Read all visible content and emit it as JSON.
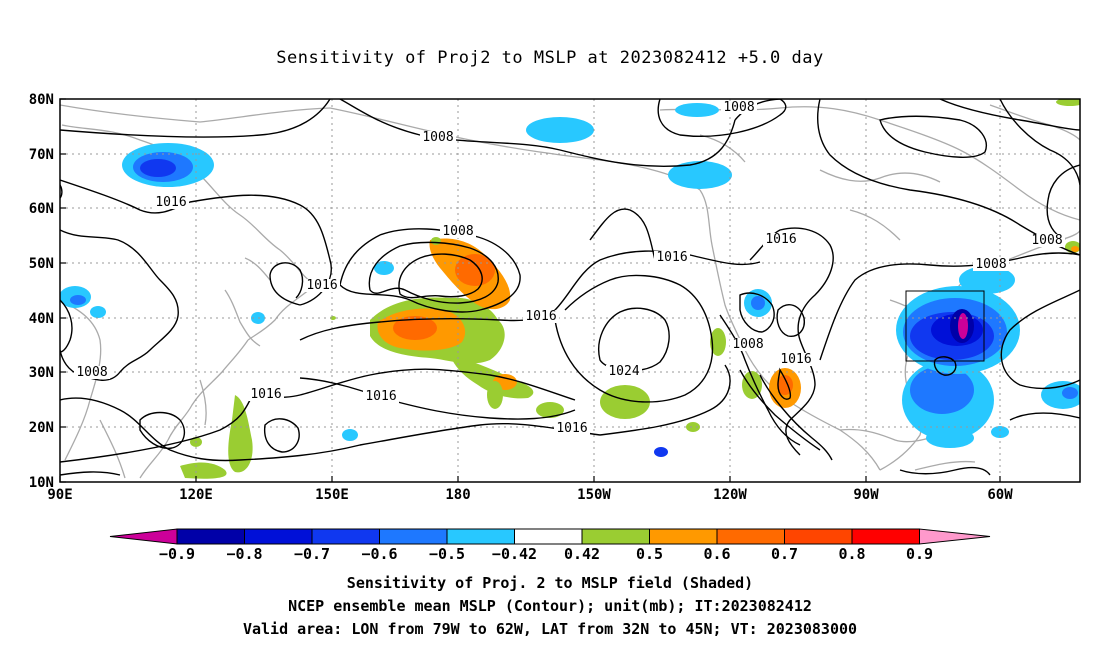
{
  "title": "Sensitivity of Proj2 to MSLP at 2023082412 +5.0 day",
  "lat_ticks": [
    "80N",
    "70N",
    "60N",
    "50N",
    "40N",
    "30N",
    "20N",
    "10N"
  ],
  "lon_ticks": [
    "90E",
    "120E",
    "150E",
    "180",
    "150W",
    "120W",
    "90W",
    "60W"
  ],
  "contour_labels": [
    "1008",
    "1008",
    "1016",
    "1016",
    "1008",
    "1016",
    "1016",
    "1024",
    "1016",
    "1016",
    "1008",
    "1016",
    "1008",
    "1016",
    "1016",
    "1008",
    "1008"
  ],
  "colorbar": {
    "labels": [
      "−0.9",
      "−0.8",
      "−0.7",
      "−0.6",
      "−0.5",
      "−0.42",
      "0.42",
      "0.5",
      "0.6",
      "0.7",
      "0.8",
      "0.9"
    ],
    "colors": [
      "#0000a8",
      "#0010d8",
      "#1038f0",
      "#1e78ff",
      "#28c8ff",
      "#ffffff",
      "#9acd32",
      "#ff9900",
      "#ff6a00",
      "#ff4500",
      "#ff0000"
    ],
    "under_color": "#cc0099",
    "over_color": "#ff99cc"
  },
  "captions": {
    "line1": "Sensitivity of Proj. 2 to MSLP field (Shaded)",
    "line2": "NCEP ensemble mean MSLP (Contour); unit(mb); IT:2023082412",
    "line3": "Valid area: LON from 79W to 62W, LAT from 32N to 45N; VT: 2023083000"
  },
  "valid_area": {
    "lon_min": -79,
    "lon_max": -62,
    "lat_min": 32,
    "lat_max": 45
  }
}
